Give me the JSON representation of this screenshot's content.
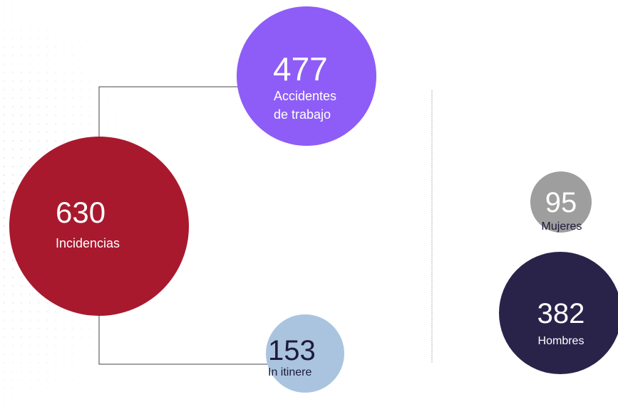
{
  "nodes": [
    {
      "value": 630,
      "label": [
        "Incidencias"
      ]
    },
    {
      "value": 477,
      "label": [
        "Accidentes",
        "de trabajo"
      ]
    },
    {
      "value": 153,
      "label": [
        "In itinere"
      ]
    },
    {
      "value": 95,
      "label": [
        "Mujeres"
      ]
    },
    {
      "value": 382,
      "label": [
        "Hombres"
      ]
    }
  ]
}
